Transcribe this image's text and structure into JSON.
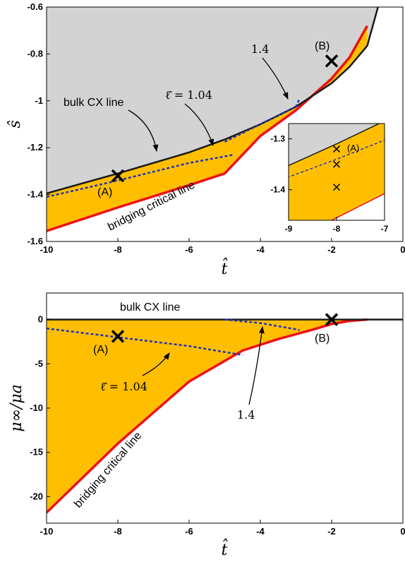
{
  "chart_data": [
    {
      "type": "area",
      "panel": "top",
      "xlabel": "t̂",
      "ylabel": "ŝ",
      "xlim": [
        -10,
        0
      ],
      "ylim": [
        -1.6,
        -0.6
      ],
      "xticks": [
        "-10",
        "-8",
        "-6",
        "-4",
        "-2",
        "0"
      ],
      "yticks": [
        "-1.6",
        "-1.4",
        "-1.2",
        "-1",
        "-0.8",
        "-0.6"
      ],
      "grid": false,
      "colors": {
        "bulk_region": "#d3d3d3",
        "bridging_region": "#ffbf00",
        "bulk_line": "#1a1a1a",
        "critical_line": "#ee1111",
        "dashed": "#2233bb"
      },
      "series": [
        {
          "name": "bulk CX line",
          "style": "solid-black",
          "x": [
            -10,
            -8,
            -6,
            -5,
            -4,
            -3,
            -2,
            -1.5,
            -1,
            -0.7
          ],
          "y": [
            -1.395,
            -1.31,
            -1.22,
            -1.165,
            -1.1,
            -1.025,
            -0.925,
            -0.855,
            -0.765,
            -0.6
          ]
        },
        {
          "name": "bridging critical line",
          "style": "solid-red",
          "x": [
            -10,
            -8,
            -6,
            -5,
            -4.75,
            -4,
            -3,
            -2,
            -1.5,
            -1
          ],
          "y": [
            -1.555,
            -1.455,
            -1.36,
            -1.31,
            -1.27,
            -1.15,
            -1.04,
            -0.905,
            -0.815,
            -0.68
          ]
        },
        {
          "name": "1.04",
          "style": "dashed-blue",
          "x": [
            -10,
            -8,
            -6,
            -4.75
          ],
          "y": [
            -1.41,
            -1.34,
            -1.265,
            -1.23
          ]
        },
        {
          "name": "1.4",
          "style": "dashed-blue",
          "x": [
            -5,
            -4,
            -3,
            -2.9
          ],
          "y": [
            -1.175,
            -1.1,
            -1.025,
            -0.99
          ]
        }
      ],
      "markers": [
        {
          "label": "(A)",
          "x": -8,
          "y": -1.32
        },
        {
          "label": "(B)",
          "x": -2,
          "y": -0.83
        }
      ],
      "annotations": [
        "bulk CX line",
        "bridging critical line",
        "ℓ̂ = 1.04",
        "1.4"
      ],
      "inset": {
        "xlim": [
          -9,
          -7
        ],
        "ylim": [
          -1.46,
          -1.27
        ],
        "xticks": [
          "-9",
          "-8",
          "-7"
        ],
        "yticks": [
          "-1.3",
          "-1.4"
        ],
        "markers": [
          {
            "label": "(A)",
            "x": -8,
            "y": -1.32
          },
          {
            "label": "",
            "x": -8,
            "y": -1.35
          },
          {
            "label": "",
            "x": -8,
            "y": -1.395
          }
        ]
      }
    },
    {
      "type": "area",
      "panel": "bottom",
      "xlabel": "t̂",
      "ylabel": "μ∞/μa",
      "xlim": [
        -10,
        0
      ],
      "ylim": [
        -23,
        3
      ],
      "xticks": [
        "-10",
        "-8",
        "-6",
        "-4",
        "-2",
        "0"
      ],
      "yticks": [
        "0",
        "-5",
        "-10",
        "-15",
        "-20"
      ],
      "grid": false,
      "series": [
        {
          "name": "bulk CX line",
          "style": "solid-black",
          "x": [
            -10,
            0
          ],
          "y": [
            0,
            0
          ]
        },
        {
          "name": "bridging critical line",
          "style": "solid-red",
          "x": [
            -10,
            -8,
            -6,
            -4.5,
            -3.5,
            -2.5,
            -2,
            -1.5,
            -1
          ],
          "y": [
            -21.8,
            -14,
            -7,
            -3.5,
            -2.2,
            -1.1,
            -0.5,
            -0.15,
            0
          ]
        },
        {
          "name": "1.04",
          "style": "dashed-blue",
          "x": [
            -10,
            -8,
            -6,
            -4.5
          ],
          "y": [
            -1,
            -2,
            -3,
            -4
          ]
        },
        {
          "name": "1.4",
          "style": "dashed-blue",
          "x": [
            -5,
            -4,
            -3,
            -2.9
          ],
          "y": [
            0,
            -0.4,
            -1.1,
            -1.2
          ]
        }
      ],
      "markers": [
        {
          "label": "(A)",
          "x": -8,
          "y": -1.9
        },
        {
          "label": "(B)",
          "x": -2,
          "y": 0
        }
      ],
      "annotations": [
        "bulk CX line",
        "bridging critical line",
        "ℓ̂ = 1.04",
        "1.4"
      ]
    }
  ]
}
